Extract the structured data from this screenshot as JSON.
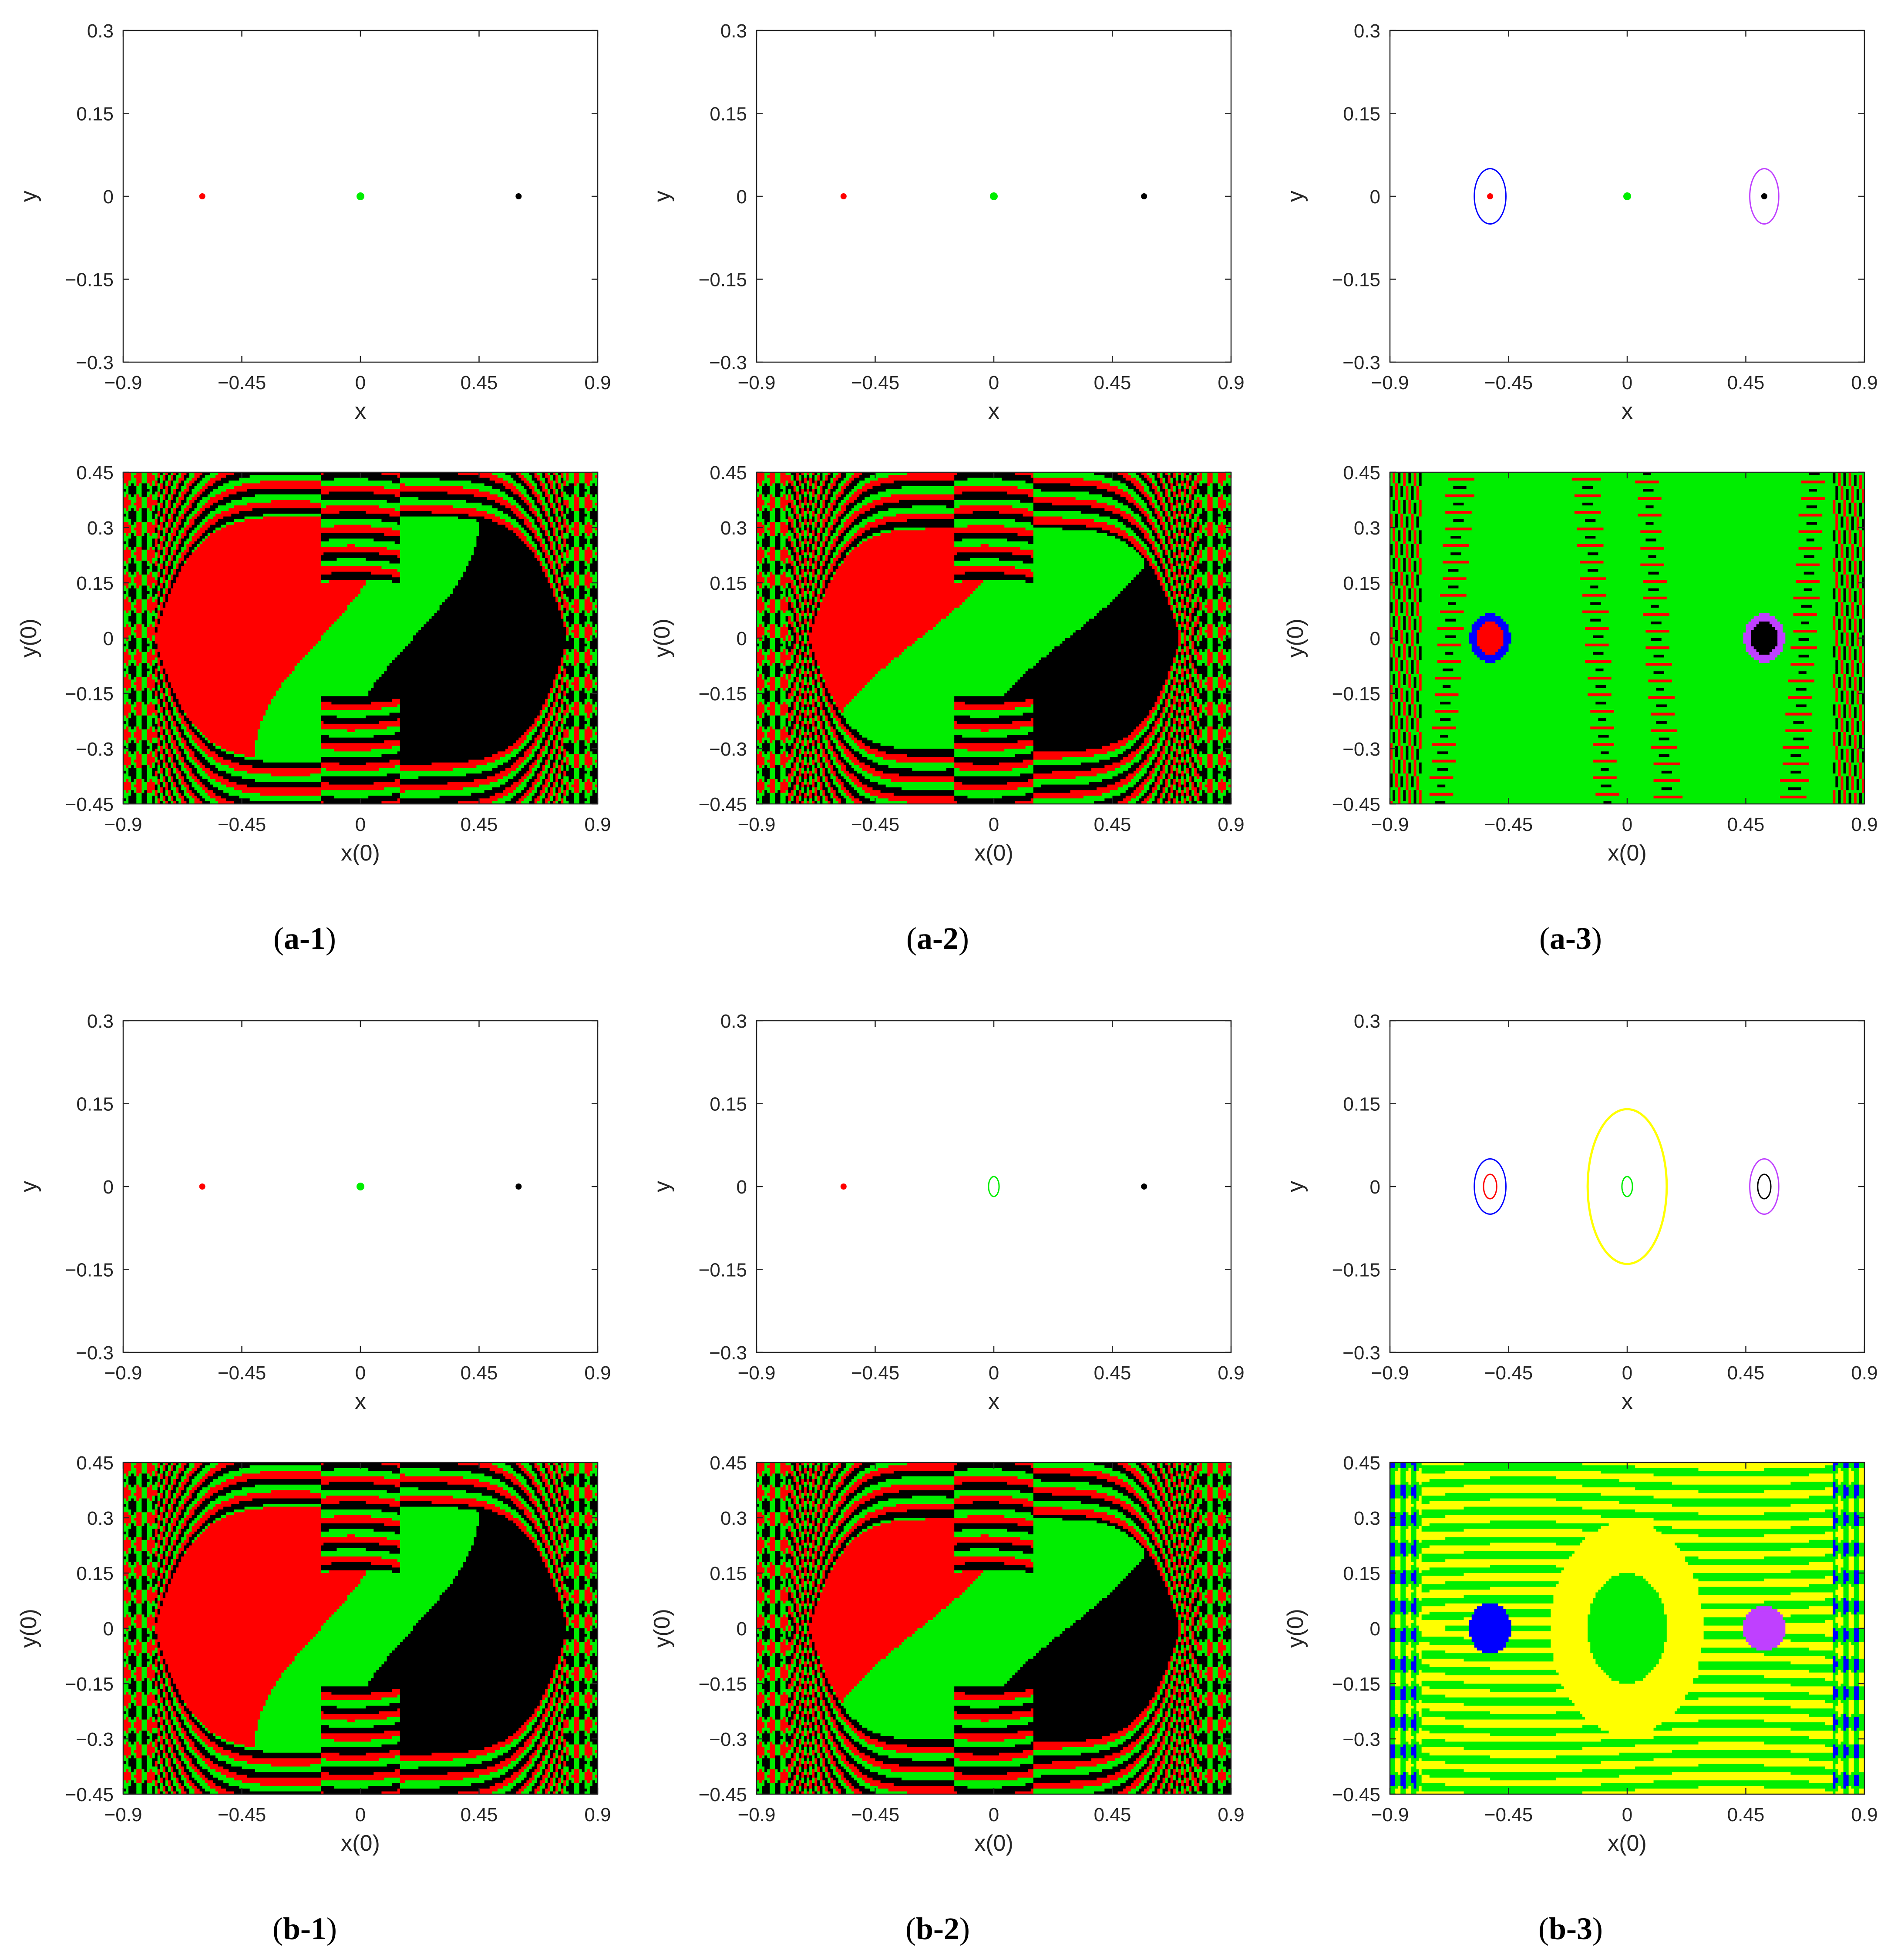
{
  "colors": {
    "red": "#ff0000",
    "green": "#00ee00",
    "black": "#000000",
    "blue": "#0000ff",
    "magenta": "#bf40ff",
    "yellow": "#ffff00",
    "axis": "#262626"
  },
  "chart_data": [
    {
      "id": "a1-top",
      "type": "scatter",
      "xlabel": "x",
      "ylabel": "y",
      "xlim": [
        -0.9,
        0.9
      ],
      "ylim": [
        -0.3,
        0.3
      ],
      "xticks": [
        "−0.9",
        "−0.45",
        "0",
        "0.45",
        "0.9"
      ],
      "yticks": [
        "−0.3",
        "−0.15",
        "0",
        "0.15",
        "0.3"
      ],
      "points": [
        {
          "x": -0.6,
          "y": 0,
          "color": "red"
        },
        {
          "x": 0,
          "y": 0,
          "color": "green"
        },
        {
          "x": 0.6,
          "y": 0,
          "color": "black"
        }
      ],
      "orbits": []
    },
    {
      "id": "a2-top",
      "type": "scatter",
      "xlabel": "x",
      "ylabel": "y",
      "xlim": [
        -0.9,
        0.9
      ],
      "ylim": [
        -0.3,
        0.3
      ],
      "xticks": [
        "−0.9",
        "−0.45",
        "0",
        "0.45",
        "0.9"
      ],
      "yticks": [
        "−0.3",
        "−0.15",
        "0",
        "0.15",
        "0.3"
      ],
      "points": [
        {
          "x": -0.57,
          "y": 0,
          "color": "red"
        },
        {
          "x": 0,
          "y": 0,
          "color": "green"
        },
        {
          "x": 0.57,
          "y": 0,
          "color": "black"
        }
      ],
      "orbits": []
    },
    {
      "id": "a3-top",
      "type": "scatter",
      "xlabel": "x",
      "ylabel": "y",
      "xlim": [
        -0.9,
        0.9
      ],
      "ylim": [
        -0.3,
        0.3
      ],
      "xticks": [
        "−0.9",
        "−0.45",
        "0",
        "0.45",
        "0.9"
      ],
      "yticks": [
        "−0.3",
        "−0.15",
        "0",
        "0.15",
        "0.3"
      ],
      "points": [
        {
          "x": -0.52,
          "y": 0,
          "color": "red"
        },
        {
          "x": 0,
          "y": 0,
          "color": "green"
        },
        {
          "x": 0.52,
          "y": 0,
          "color": "black"
        }
      ],
      "orbits": [
        {
          "cx": -0.52,
          "rx": 0.06,
          "ry": 0.05,
          "color": "blue"
        },
        {
          "cx": 0.52,
          "rx": 0.055,
          "ry": 0.05,
          "color": "magenta"
        }
      ]
    },
    {
      "id": "a1-bottom",
      "type": "heatmap",
      "xlabel": "x(0)",
      "ylabel": "y(0)",
      "xlim": [
        -0.9,
        0.9
      ],
      "ylim": [
        -0.45,
        0.45
      ],
      "xticks": [
        "−0.9",
        "−0.45",
        "0",
        "0.45",
        "0.9"
      ],
      "yticks": [
        "−0.45",
        "−0.3",
        "−0.15",
        "0",
        "0.15",
        "0.3",
        "0.45"
      ],
      "basins": [
        "red",
        "green",
        "black"
      ],
      "variant": 1
    },
    {
      "id": "a2-bottom",
      "type": "heatmap",
      "xlabel": "x(0)",
      "ylabel": "y(0)",
      "xlim": [
        -0.9,
        0.9
      ],
      "ylim": [
        -0.45,
        0.45
      ],
      "xticks": [
        "−0.9",
        "−0.45",
        "0",
        "0.45",
        "0.9"
      ],
      "yticks": [
        "−0.45",
        "−0.3",
        "−0.15",
        "0",
        "0.15",
        "0.3",
        "0.45"
      ],
      "basins": [
        "red",
        "green",
        "black"
      ],
      "variant": 2
    },
    {
      "id": "a3-bottom",
      "type": "heatmap",
      "xlabel": "x(0)",
      "ylabel": "y(0)",
      "xlim": [
        -0.9,
        0.9
      ],
      "ylim": [
        -0.45,
        0.45
      ],
      "xticks": [
        "−0.9",
        "−0.45",
        "0",
        "0.45",
        "0.9"
      ],
      "yticks": [
        "−0.45",
        "−0.3",
        "−0.15",
        "0",
        "0.15",
        "0.3",
        "0.45"
      ],
      "basins": [
        "green",
        "red",
        "black",
        "blue",
        "magenta"
      ],
      "variant": 3
    },
    {
      "id": "b1-top",
      "type": "scatter",
      "xlabel": "x",
      "ylabel": "y",
      "xlim": [
        -0.9,
        0.9
      ],
      "ylim": [
        -0.3,
        0.3
      ],
      "xticks": [
        "−0.9",
        "−0.45",
        "0",
        "0.45",
        "0.9"
      ],
      "yticks": [
        "−0.3",
        "−0.15",
        "0",
        "0.15",
        "0.3"
      ],
      "points": [
        {
          "x": -0.6,
          "y": 0,
          "color": "red"
        },
        {
          "x": 0,
          "y": 0,
          "color": "green"
        },
        {
          "x": 0.6,
          "y": 0,
          "color": "black"
        }
      ],
      "orbits": []
    },
    {
      "id": "b2-top",
      "type": "scatter",
      "xlabel": "x",
      "ylabel": "y",
      "xlim": [
        -0.9,
        0.9
      ],
      "ylim": [
        -0.3,
        0.3
      ],
      "xticks": [
        "−0.9",
        "−0.45",
        "0",
        "0.45",
        "0.9"
      ],
      "yticks": [
        "−0.3",
        "−0.15",
        "0",
        "0.15",
        "0.3"
      ],
      "points": [
        {
          "x": -0.57,
          "y": 0,
          "color": "red"
        },
        {
          "x": 0.57,
          "y": 0,
          "color": "black"
        }
      ],
      "orbits": [
        {
          "cx": 0,
          "rx": 0.02,
          "ry": 0.018,
          "color": "green"
        }
      ]
    },
    {
      "id": "b3-top",
      "type": "scatter",
      "xlabel": "x",
      "ylabel": "y",
      "xlim": [
        -0.9,
        0.9
      ],
      "ylim": [
        -0.3,
        0.3
      ],
      "xticks": [
        "−0.9",
        "−0.45",
        "0",
        "0.45",
        "0.9"
      ],
      "yticks": [
        "−0.3",
        "−0.15",
        "0",
        "0.15",
        "0.3"
      ],
      "points": [],
      "orbits": [
        {
          "cx": -0.52,
          "rx": 0.06,
          "ry": 0.05,
          "color": "blue"
        },
        {
          "cx": -0.52,
          "rx": 0.025,
          "ry": 0.022,
          "color": "red"
        },
        {
          "cx": 0,
          "rx": 0.15,
          "ry": 0.14,
          "color": "yellow"
        },
        {
          "cx": 0,
          "rx": 0.02,
          "ry": 0.018,
          "color": "green"
        },
        {
          "cx": 0.52,
          "rx": 0.055,
          "ry": 0.05,
          "color": "magenta"
        },
        {
          "cx": 0.52,
          "rx": 0.025,
          "ry": 0.022,
          "color": "black"
        }
      ]
    },
    {
      "id": "b1-bottom",
      "type": "heatmap",
      "xlabel": "x(0)",
      "ylabel": "y(0)",
      "xlim": [
        -0.9,
        0.9
      ],
      "ylim": [
        -0.45,
        0.45
      ],
      "xticks": [
        "−0.9",
        "−0.45",
        "0",
        "0.45",
        "0.9"
      ],
      "yticks": [
        "−0.45",
        "−0.3",
        "−0.15",
        "0",
        "0.15",
        "0.3",
        "0.45"
      ],
      "basins": [
        "red",
        "green",
        "black"
      ],
      "variant": 1
    },
    {
      "id": "b2-bottom",
      "type": "heatmap",
      "xlabel": "x(0)",
      "ylabel": "y(0)",
      "xlim": [
        -0.9,
        0.9
      ],
      "ylim": [
        -0.45,
        0.45
      ],
      "xticks": [
        "−0.9",
        "−0.45",
        "0",
        "0.45",
        "0.9"
      ],
      "yticks": [
        "−0.45",
        "−0.3",
        "−0.15",
        "0",
        "0.15",
        "0.3",
        "0.45"
      ],
      "basins": [
        "red",
        "green",
        "black"
      ],
      "variant": 2
    },
    {
      "id": "b3-bottom",
      "type": "heatmap",
      "xlabel": "x(0)",
      "ylabel": "y(0)",
      "xlim": [
        -0.9,
        0.9
      ],
      "ylim": [
        -0.45,
        0.45
      ],
      "xticks": [
        "−0.9",
        "−0.45",
        "0",
        "0.45",
        "0.9"
      ],
      "yticks": [
        "−0.45",
        "−0.3",
        "−0.15",
        "0",
        "0.15",
        "0.3",
        "0.45"
      ],
      "basins": [
        "green",
        "yellow",
        "red",
        "black",
        "blue",
        "magenta"
      ],
      "variant": 4
    }
  ],
  "panel_labels": [
    {
      "bold": "a-1",
      "text": "(a-1)"
    },
    {
      "bold": "a-2",
      "text": "(a-2)"
    },
    {
      "bold": "a-3",
      "text": "(a-3)"
    },
    {
      "bold": "b-1",
      "text": "(b-1)"
    },
    {
      "bold": "b-2",
      "text": "(b-2)"
    },
    {
      "bold": "b-3",
      "text": "(b-3)"
    }
  ]
}
